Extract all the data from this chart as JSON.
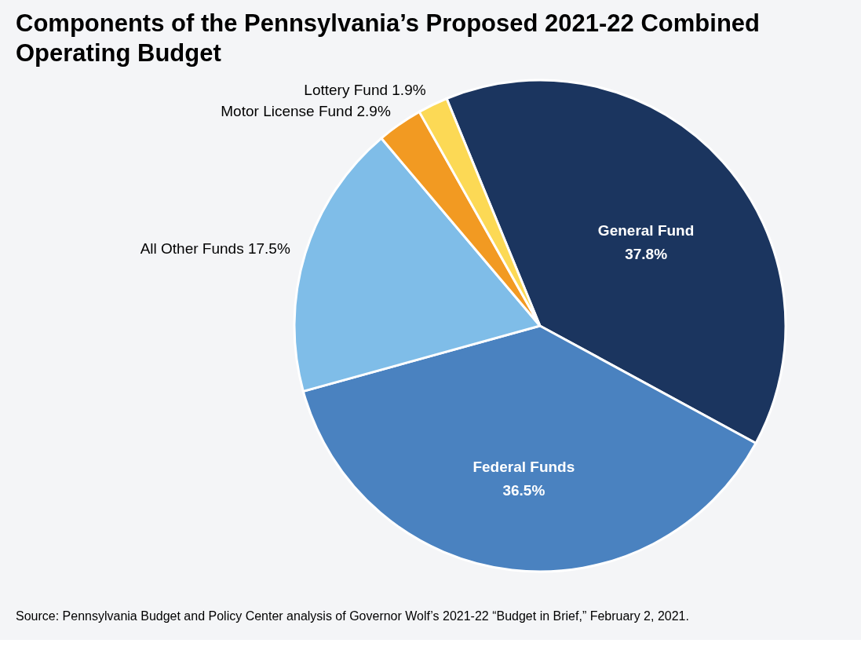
{
  "chart_data": {
    "type": "pie",
    "title": "Components of the Pennsylvania’s Proposed 2021-22 Combined Operating Budget",
    "categories": [
      "General Fund",
      "Federal Funds",
      "All Other Funds",
      "Motor License Fund",
      "Lottery Fund"
    ],
    "values": [
      37.8,
      36.5,
      17.5,
      2.9,
      1.9
    ],
    "value_labels": [
      "37.8%",
      "36.5%",
      "17.5%",
      "2.9%",
      "1.9%"
    ],
    "colors": [
      "#1b355f",
      "#4a82c0",
      "#7fbde8",
      "#f29a22",
      "#fcd955"
    ],
    "legend": false,
    "annotations": [
      "Source: Pennsylvania Budget and Policy Center analysis of Governor Wolf’s 2021-22 “Budget in Brief,” February 2, 2021."
    ]
  }
}
